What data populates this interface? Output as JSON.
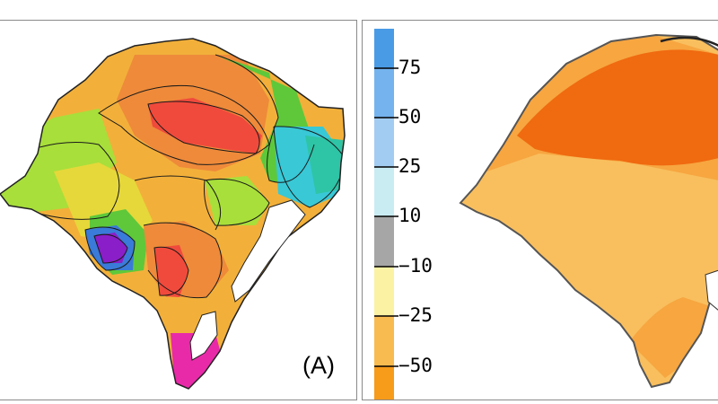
{
  "panel_a": {
    "label": "(A)"
  },
  "panel_b": {
    "legend": {
      "ticks": [
        "75",
        "50",
        "25",
        "10",
        "−10",
        "−25",
        "−50"
      ],
      "classes": [
        {
          "range": "> 75",
          "color": "#4a9be6"
        },
        {
          "range": "50 to 75",
          "color": "#74b3ee"
        },
        {
          "range": "25 to 50",
          "color": "#a2ccf2"
        },
        {
          "range": "10 to 25",
          "color": "#c9ecf3"
        },
        {
          "range": "-10 to 10",
          "color": "#a6a6a6"
        },
        {
          "range": "-25 to -10",
          "color": "#fbf2a4"
        },
        {
          "range": "-50 to -25",
          "color": "#f8bb50"
        },
        {
          "range": "< -50",
          "color": "#f79b1b"
        }
      ]
    },
    "colors": {
      "strong_decrease": "#f06a10",
      "moderate_decrease": "#f7a640",
      "light_decrease": "#f9bf5e"
    }
  },
  "panel_a_colors": {
    "purple": "#8a1ec8",
    "magenta": "#e82aa8",
    "red": "#f04a3c",
    "orange": "#ee8a3a",
    "yellow_orange": "#f2b03a",
    "yellow": "#e6d83a",
    "light_green": "#a8df3a",
    "green": "#5ec83a",
    "teal": "#2ec4a6",
    "cyan": "#38c8d6",
    "blue": "#3a7ad8"
  }
}
